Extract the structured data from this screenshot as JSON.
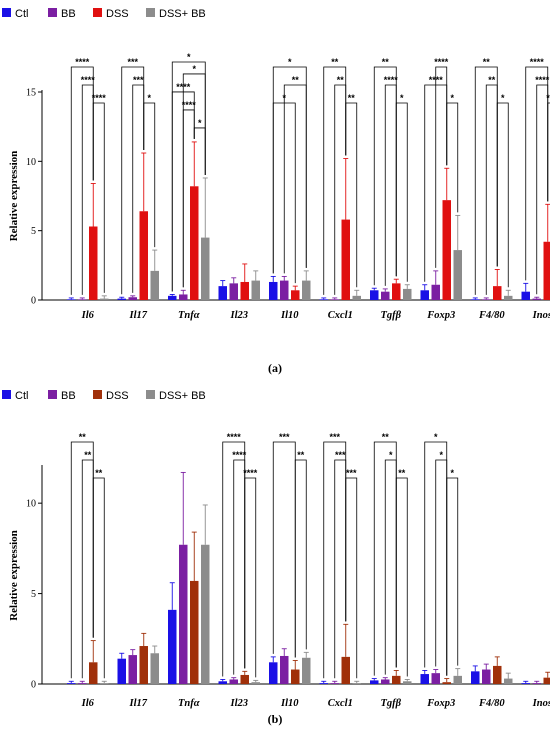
{
  "colors": {
    "Ctl": "#1a10e6",
    "BB": "#7b1fa2",
    "DSS_a": "#e01010",
    "DSS_b": "#a0300a",
    "DSS_BB": "#8c8c8c"
  },
  "chart_data": [
    {
      "type": "bar",
      "panel_label": "(a)",
      "ylabel": "Relative expression",
      "ylim": [
        0,
        15
      ],
      "yticks": [
        "0",
        "5",
        "10",
        "15"
      ],
      "legend": {
        "placement": "top-left",
        "entries": [
          "Ctl",
          "BB",
          "DSS",
          "DSS+ BB"
        ]
      },
      "categories": [
        "Il6",
        "Il17",
        "Tnfα",
        "Il23",
        "Il10",
        "Cxcl1",
        "Tgfβ",
        "Foxp3",
        "F4/80",
        "Inos"
      ],
      "series": [
        {
          "name": "Ctl",
          "values": [
            0.05,
            0.1,
            0.3,
            1.0,
            1.3,
            0.05,
            0.7,
            0.7,
            0.05,
            0.6
          ],
          "errors": [
            0.1,
            0.1,
            0.1,
            0.4,
            0.4,
            0.1,
            0.15,
            0.4,
            0.1,
            0.6
          ]
        },
        {
          "name": "BB",
          "values": [
            0.05,
            0.2,
            0.4,
            1.2,
            1.4,
            0.05,
            0.6,
            1.1,
            0.05,
            0.1
          ],
          "errors": [
            0.1,
            0.1,
            0.3,
            0.4,
            0.3,
            0.1,
            0.2,
            1.0,
            0.1,
            0.1
          ]
        },
        {
          "name": "DSS",
          "values": [
            5.3,
            6.4,
            8.2,
            1.3,
            0.7,
            5.8,
            1.2,
            7.2,
            1.0,
            4.2
          ],
          "errors": [
            3.1,
            4.2,
            3.2,
            1.3,
            0.3,
            4.4,
            0.3,
            2.3,
            1.2,
            2.7
          ]
        },
        {
          "name": "DSS+ BB",
          "values": [
            0.1,
            2.1,
            4.5,
            1.4,
            1.4,
            0.3,
            0.8,
            3.6,
            0.3,
            0.2
          ],
          "errors": [
            0.2,
            1.5,
            4.3,
            0.7,
            0.7,
            0.4,
            0.3,
            2.5,
            0.4,
            0.2
          ]
        }
      ],
      "annotations": [
        {
          "cat": 0,
          "from": 0,
          "to": 2,
          "label": "****"
        },
        {
          "cat": 0,
          "from": 1,
          "to": 2,
          "label": "****"
        },
        {
          "cat": 0,
          "from": 2,
          "to": 3,
          "label": "****"
        },
        {
          "cat": 1,
          "from": 0,
          "to": 2,
          "label": "***"
        },
        {
          "cat": 1,
          "from": 1,
          "to": 2,
          "label": "***"
        },
        {
          "cat": 1,
          "from": 2,
          "to": 3,
          "label": "*"
        },
        {
          "cat": 2,
          "from": 0,
          "to": 3,
          "label": "*"
        },
        {
          "cat": 2,
          "from": 1,
          "to": 3,
          "label": "*"
        },
        {
          "cat": 2,
          "from": 0,
          "to": 2,
          "label": "****"
        },
        {
          "cat": 2,
          "from": 1,
          "to": 2,
          "label": "****"
        },
        {
          "cat": 2,
          "from": 2,
          "to": 3,
          "label": "*"
        },
        {
          "cat": 4,
          "from": 0,
          "to": 3,
          "label": "*"
        },
        {
          "cat": 4,
          "from": 1,
          "to": 3,
          "label": "**"
        },
        {
          "cat": 4,
          "from": 0,
          "to": 2,
          "label": "*"
        },
        {
          "cat": 5,
          "from": 0,
          "to": 2,
          "label": "**"
        },
        {
          "cat": 5,
          "from": 1,
          "to": 2,
          "label": "**"
        },
        {
          "cat": 5,
          "from": 2,
          "to": 3,
          "label": "**"
        },
        {
          "cat": 6,
          "from": 0,
          "to": 2,
          "label": "**"
        },
        {
          "cat": 6,
          "from": 1,
          "to": 2,
          "label": "****"
        },
        {
          "cat": 6,
          "from": 2,
          "to": 3,
          "label": "*"
        },
        {
          "cat": 7,
          "from": 1,
          "to": 2,
          "label": "****"
        },
        {
          "cat": 7,
          "from": 0,
          "to": 2,
          "label": "****"
        },
        {
          "cat": 7,
          "from": 2,
          "to": 3,
          "label": "*"
        },
        {
          "cat": 8,
          "from": 0,
          "to": 2,
          "label": "**"
        },
        {
          "cat": 8,
          "from": 1,
          "to": 2,
          "label": "**"
        },
        {
          "cat": 8,
          "from": 2,
          "to": 3,
          "label": "*"
        },
        {
          "cat": 9,
          "from": 0,
          "to": 2,
          "label": "****"
        },
        {
          "cat": 9,
          "from": 1,
          "to": 2,
          "label": "****"
        },
        {
          "cat": 9,
          "from": 2,
          "to": 3,
          "label": "****"
        }
      ]
    },
    {
      "type": "bar",
      "panel_label": "(b)",
      "ylabel": "Relative expression",
      "ylim": [
        0,
        12
      ],
      "yticks": [
        "0",
        "5",
        "10"
      ],
      "legend": {
        "placement": "top-left",
        "entries": [
          "Ctl",
          "BB",
          "DSS",
          "DSS+ BB"
        ]
      },
      "categories": [
        "Il6",
        "Il17",
        "Tnfα",
        "Il23",
        "Il10",
        "Cxcl1",
        "Tgfβ",
        "Foxp3",
        "F4/80",
        "Inos"
      ],
      "series": [
        {
          "name": "Ctl",
          "values": [
            0.05,
            1.4,
            4.1,
            0.15,
            1.2,
            0.05,
            0.2,
            0.55,
            0.7,
            0.05
          ],
          "errors": [
            0.1,
            0.3,
            1.5,
            0.1,
            0.3,
            0.1,
            0.1,
            0.2,
            0.3,
            0.1
          ]
        },
        {
          "name": "BB",
          "values": [
            0.05,
            1.6,
            7.7,
            0.25,
            1.55,
            0.05,
            0.25,
            0.6,
            0.8,
            0.05
          ],
          "errors": [
            0.1,
            0.3,
            4.0,
            0.1,
            0.4,
            0.1,
            0.1,
            0.2,
            0.3,
            0.1
          ]
        },
        {
          "name": "DSS",
          "values": [
            1.2,
            2.1,
            5.7,
            0.5,
            0.8,
            1.5,
            0.45,
            0.1,
            1.0,
            0.35
          ],
          "errors": [
            1.2,
            0.7,
            2.7,
            0.2,
            0.5,
            1.8,
            0.3,
            0.2,
            0.5,
            0.3
          ]
        },
        {
          "name": "DSS+ BB",
          "values": [
            0.05,
            1.7,
            7.7,
            0.1,
            1.45,
            0.05,
            0.15,
            0.45,
            0.3,
            0.3
          ],
          "errors": [
            0.1,
            0.4,
            2.2,
            0.1,
            0.3,
            0.1,
            0.1,
            0.4,
            0.3,
            0.3
          ]
        }
      ],
      "annotations": [
        {
          "cat": 0,
          "from": 0,
          "to": 2,
          "label": "**"
        },
        {
          "cat": 0,
          "from": 1,
          "to": 2,
          "label": "**"
        },
        {
          "cat": 0,
          "from": 2,
          "to": 3,
          "label": "**"
        },
        {
          "cat": 3,
          "from": 0,
          "to": 2,
          "label": "****"
        },
        {
          "cat": 3,
          "from": 1,
          "to": 2,
          "label": "****"
        },
        {
          "cat": 3,
          "from": 2,
          "to": 3,
          "label": "****"
        },
        {
          "cat": 4,
          "from": 0,
          "to": 2,
          "label": "***"
        },
        {
          "cat": 4,
          "from": 2,
          "to": 3,
          "label": "**"
        },
        {
          "cat": 5,
          "from": 0,
          "to": 2,
          "label": "***"
        },
        {
          "cat": 5,
          "from": 1,
          "to": 2,
          "label": "***"
        },
        {
          "cat": 5,
          "from": 2,
          "to": 3,
          "label": "***"
        },
        {
          "cat": 6,
          "from": 0,
          "to": 2,
          "label": "**"
        },
        {
          "cat": 6,
          "from": 1,
          "to": 2,
          "label": "*"
        },
        {
          "cat": 6,
          "from": 2,
          "to": 3,
          "label": "**"
        },
        {
          "cat": 7,
          "from": 0,
          "to": 2,
          "label": "*"
        },
        {
          "cat": 7,
          "from": 1,
          "to": 2,
          "label": "*"
        },
        {
          "cat": 7,
          "from": 2,
          "to": 3,
          "label": "*"
        }
      ]
    }
  ]
}
